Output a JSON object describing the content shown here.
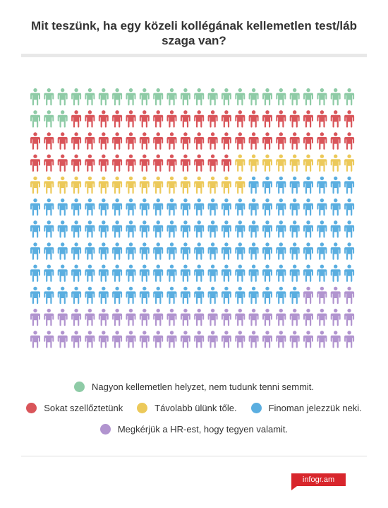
{
  "title": "Mit teszünk, ha egy közeli kollégának kellemetlen test/láb szaga van?",
  "chart_data": {
    "type": "pictogram",
    "icon": "person-icon",
    "columns": 24,
    "rows": 12,
    "total_icons": 288,
    "series": [
      {
        "name": "Nagyon kellemetlen helyzet, nem tudunk tenni semmit.",
        "color": "#8ecba6",
        "count": 27
      },
      {
        "name": "Sokat szellőztetünk",
        "color": "#d9555a",
        "count": 60
      },
      {
        "name": "Távolabb ülünk tőle.",
        "color": "#ecc95a",
        "count": 25
      },
      {
        "name": "Finoman jelezzük neki.",
        "color": "#5aaee0",
        "count": 124
      },
      {
        "name": "Megkérjük a HR-est, hogy tegyen valamit.",
        "color": "#b194cf",
        "count": 52
      }
    ]
  },
  "legend": {
    "rows": [
      [
        0
      ],
      [
        1,
        2,
        3
      ],
      [
        4
      ]
    ]
  },
  "brand": {
    "label": "infogr.am",
    "color": "#d8262c"
  }
}
